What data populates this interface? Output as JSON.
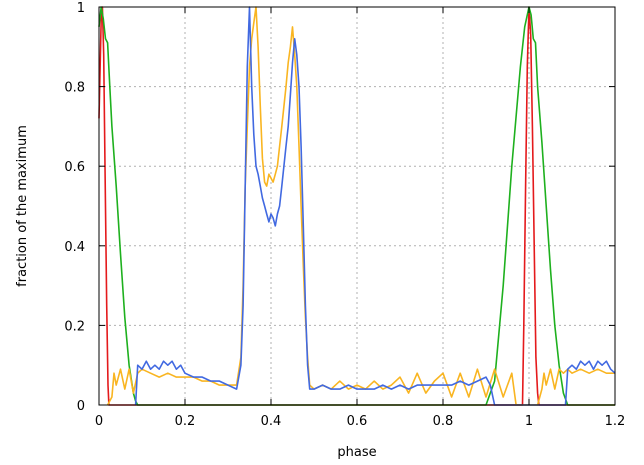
{
  "chart_data": {
    "type": "line",
    "title": "",
    "xlabel": "phase",
    "ylabel": "fraction of the maximum",
    "xlim": [
      0,
      1.2
    ],
    "ylim": [
      0,
      1
    ],
    "xticks": [
      0,
      0.2,
      0.4,
      0.6,
      0.8,
      1,
      1.2
    ],
    "xtick_labels": [
      "0",
      "0.2",
      "0.4",
      "0.6",
      "0.8",
      "1",
      "1.2"
    ],
    "yticks": [
      0,
      0.2,
      0.4,
      0.6,
      0.8,
      1
    ],
    "ytick_labels": [
      "0",
      "0.2",
      "0.4",
      "0.6",
      "0.8",
      "1"
    ],
    "grid": true,
    "legend": "none",
    "series": [
      {
        "color": "#e41a1c",
        "x": [
          0,
          0.005,
          0.008,
          0.011,
          0.014,
          0.018,
          0.021,
          0.023,
          0.5,
          0.985,
          0.988,
          0.992,
          0.996,
          1.0,
          1.004,
          1.008,
          1.012,
          1.016,
          1.02,
          1.023,
          1.2
        ],
        "y": [
          0.72,
          0.97,
          1.0,
          0.88,
          0.6,
          0.25,
          0.05,
          0.0,
          0.0,
          0.0,
          0.2,
          0.55,
          0.85,
          1.0,
          0.93,
          0.7,
          0.4,
          0.12,
          0.03,
          0.0,
          0.0
        ]
      },
      {
        "color": "#1eb01e",
        "x": [
          0,
          0.005,
          0.01,
          0.015,
          0.02,
          0.025,
          0.03,
          0.04,
          0.05,
          0.06,
          0.07,
          0.08,
          0.085,
          0.09,
          0.9,
          0.92,
          0.94,
          0.96,
          0.98,
          0.99,
          1.0,
          1.005,
          1.01,
          1.015,
          1.02,
          1.03,
          1.04,
          1.05,
          1.06,
          1.07,
          1.08,
          1.09,
          1.2
        ],
        "y": [
          0.95,
          1.0,
          0.97,
          0.92,
          0.91,
          0.8,
          0.7,
          0.55,
          0.38,
          0.22,
          0.1,
          0.03,
          0.01,
          0.0,
          0.0,
          0.06,
          0.3,
          0.6,
          0.85,
          0.95,
          1.0,
          0.98,
          0.92,
          0.91,
          0.8,
          0.66,
          0.5,
          0.34,
          0.2,
          0.1,
          0.03,
          0.0,
          0.0
        ]
      },
      {
        "color": "#f9b521",
        "x": [
          0.02,
          0.03,
          0.035,
          0.04,
          0.05,
          0.06,
          0.07,
          0.08,
          0.09,
          0.1,
          0.12,
          0.14,
          0.16,
          0.18,
          0.2,
          0.22,
          0.24,
          0.26,
          0.28,
          0.3,
          0.32,
          0.33,
          0.335,
          0.34,
          0.345,
          0.35,
          0.355,
          0.36,
          0.365,
          0.37,
          0.375,
          0.38,
          0.385,
          0.39,
          0.395,
          0.4,
          0.405,
          0.41,
          0.415,
          0.42,
          0.425,
          0.43,
          0.435,
          0.44,
          0.445,
          0.45,
          0.455,
          0.46,
          0.465,
          0.47,
          0.475,
          0.48,
          0.485,
          0.49,
          0.5,
          0.52,
          0.54,
          0.56,
          0.58,
          0.6,
          0.62,
          0.64,
          0.66,
          0.68,
          0.7,
          0.72,
          0.74,
          0.76,
          0.78,
          0.8,
          0.82,
          0.84,
          0.86,
          0.88,
          0.9,
          0.92,
          0.94,
          0.96,
          0.97,
          1.02,
          1.03,
          1.035,
          1.04,
          1.05,
          1.06,
          1.07,
          1.08,
          1.09,
          1.1,
          1.12,
          1.14,
          1.16,
          1.18,
          1.2
        ],
        "y": [
          0.0,
          0.02,
          0.08,
          0.05,
          0.09,
          0.04,
          0.09,
          0.03,
          0.08,
          0.09,
          0.08,
          0.07,
          0.08,
          0.07,
          0.07,
          0.07,
          0.06,
          0.06,
          0.05,
          0.05,
          0.05,
          0.12,
          0.3,
          0.55,
          0.7,
          0.85,
          0.92,
          0.96,
          1.0,
          0.9,
          0.75,
          0.62,
          0.56,
          0.55,
          0.58,
          0.57,
          0.56,
          0.58,
          0.6,
          0.65,
          0.7,
          0.75,
          0.8,
          0.86,
          0.9,
          0.95,
          0.88,
          0.8,
          0.65,
          0.5,
          0.35,
          0.22,
          0.12,
          0.05,
          0.04,
          0.05,
          0.04,
          0.06,
          0.04,
          0.05,
          0.04,
          0.06,
          0.04,
          0.05,
          0.07,
          0.03,
          0.08,
          0.03,
          0.06,
          0.08,
          0.02,
          0.08,
          0.02,
          0.09,
          0.02,
          0.09,
          0.02,
          0.08,
          0.0,
          0.0,
          0.04,
          0.08,
          0.05,
          0.09,
          0.04,
          0.09,
          0.08,
          0.09,
          0.08,
          0.09,
          0.08,
          0.09,
          0.08,
          0.08
        ]
      },
      {
        "color": "#4169e1",
        "x": [
          0.085,
          0.09,
          0.1,
          0.11,
          0.12,
          0.13,
          0.14,
          0.15,
          0.16,
          0.17,
          0.18,
          0.19,
          0.2,
          0.22,
          0.24,
          0.26,
          0.28,
          0.3,
          0.32,
          0.33,
          0.335,
          0.34,
          0.345,
          0.35,
          0.355,
          0.36,
          0.365,
          0.37,
          0.375,
          0.38,
          0.385,
          0.39,
          0.395,
          0.4,
          0.405,
          0.41,
          0.415,
          0.42,
          0.425,
          0.43,
          0.435,
          0.44,
          0.445,
          0.45,
          0.455,
          0.46,
          0.465,
          0.47,
          0.475,
          0.48,
          0.485,
          0.49,
          0.5,
          0.52,
          0.54,
          0.56,
          0.58,
          0.6,
          0.62,
          0.64,
          0.66,
          0.68,
          0.7,
          0.72,
          0.74,
          0.76,
          0.78,
          0.8,
          0.82,
          0.84,
          0.86,
          0.88,
          0.9,
          0.91,
          0.92,
          1.085,
          1.09,
          1.1,
          1.11,
          1.12,
          1.13,
          1.14,
          1.15,
          1.16,
          1.17,
          1.18,
          1.19,
          1.2
        ],
        "y": [
          0.0,
          0.1,
          0.09,
          0.11,
          0.09,
          0.1,
          0.09,
          0.11,
          0.1,
          0.11,
          0.09,
          0.1,
          0.08,
          0.07,
          0.07,
          0.06,
          0.06,
          0.05,
          0.04,
          0.1,
          0.25,
          0.55,
          0.85,
          1.0,
          0.8,
          0.68,
          0.6,
          0.58,
          0.55,
          0.52,
          0.5,
          0.48,
          0.46,
          0.48,
          0.47,
          0.45,
          0.48,
          0.5,
          0.55,
          0.6,
          0.65,
          0.7,
          0.78,
          0.86,
          0.92,
          0.88,
          0.8,
          0.65,
          0.45,
          0.25,
          0.1,
          0.04,
          0.04,
          0.05,
          0.04,
          0.04,
          0.05,
          0.04,
          0.04,
          0.04,
          0.05,
          0.04,
          0.05,
          0.04,
          0.05,
          0.05,
          0.05,
          0.05,
          0.05,
          0.06,
          0.05,
          0.06,
          0.07,
          0.05,
          0.0,
          0.0,
          0.09,
          0.1,
          0.09,
          0.11,
          0.1,
          0.11,
          0.09,
          0.11,
          0.1,
          0.11,
          0.09,
          0.08
        ]
      }
    ]
  }
}
